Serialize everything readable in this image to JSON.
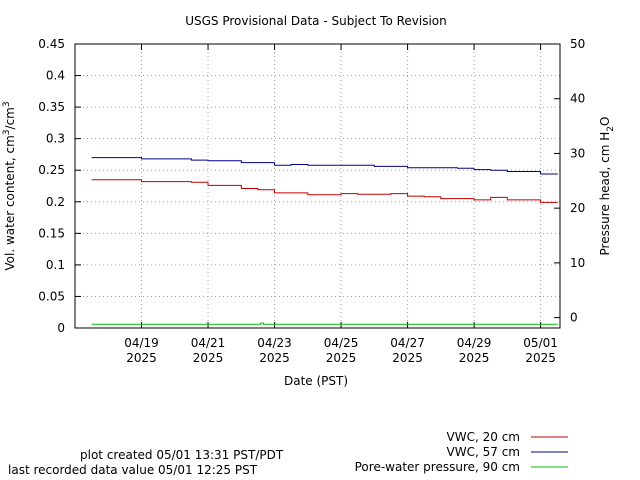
{
  "chart_data": {
    "type": "line",
    "title": "USGS Provisional Data - Subject To Revision",
    "xlabel": "Date (PST)",
    "ylabel_parts": {
      "a": "Vol. water content, cm",
      "b": "3",
      "c": "/cm",
      "d": "3"
    },
    "y2label_parts": {
      "a": "Pressure head, cm H",
      "b": "2",
      "c": "O"
    },
    "x_range": [
      "2025-04-17",
      "2025-05-01T14:00"
    ],
    "x_ticks": [
      {
        "date": "2025-04-19",
        "line1": "04/19",
        "line2": "2025"
      },
      {
        "date": "2025-04-21",
        "line1": "04/21",
        "line2": "2025"
      },
      {
        "date": "2025-04-23",
        "line1": "04/23",
        "line2": "2025"
      },
      {
        "date": "2025-04-25",
        "line1": "04/25",
        "line2": "2025"
      },
      {
        "date": "2025-04-27",
        "line1": "04/27",
        "line2": "2025"
      },
      {
        "date": "2025-04-29",
        "line1": "04/29",
        "line2": "2025"
      },
      {
        "date": "2025-05-01",
        "line1": "05/01",
        "line2": "2025"
      }
    ],
    "ylim": [
      0,
      0.45
    ],
    "y_ticks": [
      "0",
      "0.05",
      "0.1",
      "0.15",
      "0.2",
      "0.25",
      "0.3",
      "0.35",
      "0.4",
      "0.45"
    ],
    "y2lim": [
      -1.9,
      50
    ],
    "y2_ticks": [
      "0",
      "10",
      "20",
      "30",
      "40",
      "50"
    ],
    "grid": true,
    "legend_position": "bottom-right, below plot",
    "series": [
      {
        "name": "VWC, 20 cm",
        "axis": "left",
        "color": "#c00000",
        "x": [
          "2025-04-17T12:00",
          "2025-04-18T12:00",
          "2025-04-19T00:00",
          "2025-04-20T00:00",
          "2025-04-20T12:00",
          "2025-04-21T00:00",
          "2025-04-21T12:00",
          "2025-04-22T00:00",
          "2025-04-22T12:00",
          "2025-04-23T00:00",
          "2025-04-23T12:00",
          "2025-04-24T00:00",
          "2025-04-24T12:00",
          "2025-04-25T00:00",
          "2025-04-25T12:00",
          "2025-04-26T00:00",
          "2025-04-26T12:00",
          "2025-04-27T00:00",
          "2025-04-27T12:00",
          "2025-04-28T00:00",
          "2025-04-28T12:00",
          "2025-04-29T00:00",
          "2025-04-29T12:00",
          "2025-04-30T00:00",
          "2025-04-30T12:00",
          "2025-05-01T00:00",
          "2025-05-01T12:25"
        ],
        "y": [
          0.235,
          0.235,
          0.232,
          0.232,
          0.231,
          0.226,
          0.226,
          0.221,
          0.219,
          0.214,
          0.214,
          0.211,
          0.211,
          0.213,
          0.212,
          0.212,
          0.213,
          0.209,
          0.208,
          0.205,
          0.205,
          0.203,
          0.207,
          0.203,
          0.203,
          0.199,
          0.199
        ]
      },
      {
        "name": "VWC, 57 cm",
        "axis": "left",
        "color": "#00008b",
        "x": [
          "2025-04-17T12:00",
          "2025-04-18T12:00",
          "2025-04-19T00:00",
          "2025-04-20T00:00",
          "2025-04-20T12:00",
          "2025-04-21T00:00",
          "2025-04-21T12:00",
          "2025-04-22T00:00",
          "2025-04-22T12:00",
          "2025-04-23T00:00",
          "2025-04-23T12:00",
          "2025-04-24T00:00",
          "2025-04-24T12:00",
          "2025-04-25T00:00",
          "2025-04-25T12:00",
          "2025-04-26T00:00",
          "2025-04-26T12:00",
          "2025-04-27T00:00",
          "2025-04-27T12:00",
          "2025-04-28T00:00",
          "2025-04-28T12:00",
          "2025-04-29T00:00",
          "2025-04-29T12:00",
          "2025-04-30T00:00",
          "2025-04-30T12:00",
          "2025-05-01T00:00",
          "2025-05-01T12:25"
        ],
        "y": [
          0.27,
          0.27,
          0.268,
          0.268,
          0.266,
          0.265,
          0.265,
          0.262,
          0.262,
          0.258,
          0.259,
          0.258,
          0.258,
          0.258,
          0.258,
          0.256,
          0.256,
          0.254,
          0.254,
          0.254,
          0.253,
          0.251,
          0.25,
          0.248,
          0.248,
          0.244,
          0.244
        ]
      },
      {
        "name": "Pore-water pressure, 90 cm",
        "axis": "right",
        "color": "#00c000",
        "x": [
          "2025-04-17T12:00",
          "2025-04-19T00:00",
          "2025-04-21T00:00",
          "2025-04-22T12:00",
          "2025-04-22T14:00",
          "2025-04-22T16:00",
          "2025-04-23T00:00",
          "2025-04-25T00:00",
          "2025-04-27T00:00",
          "2025-04-29T00:00",
          "2025-05-01T00:00",
          "2025-05-01T12:25"
        ],
        "y": [
          -1.2,
          -1.2,
          -1.2,
          -1.2,
          -1.0,
          -1.2,
          -1.2,
          -1.2,
          -1.2,
          -1.2,
          -1.2,
          -1.2
        ]
      }
    ]
  },
  "footer": {
    "created": "plot created 05/01 13:31 PST/PDT",
    "last_value": "last recorded data value 05/01 12:25 PST"
  }
}
